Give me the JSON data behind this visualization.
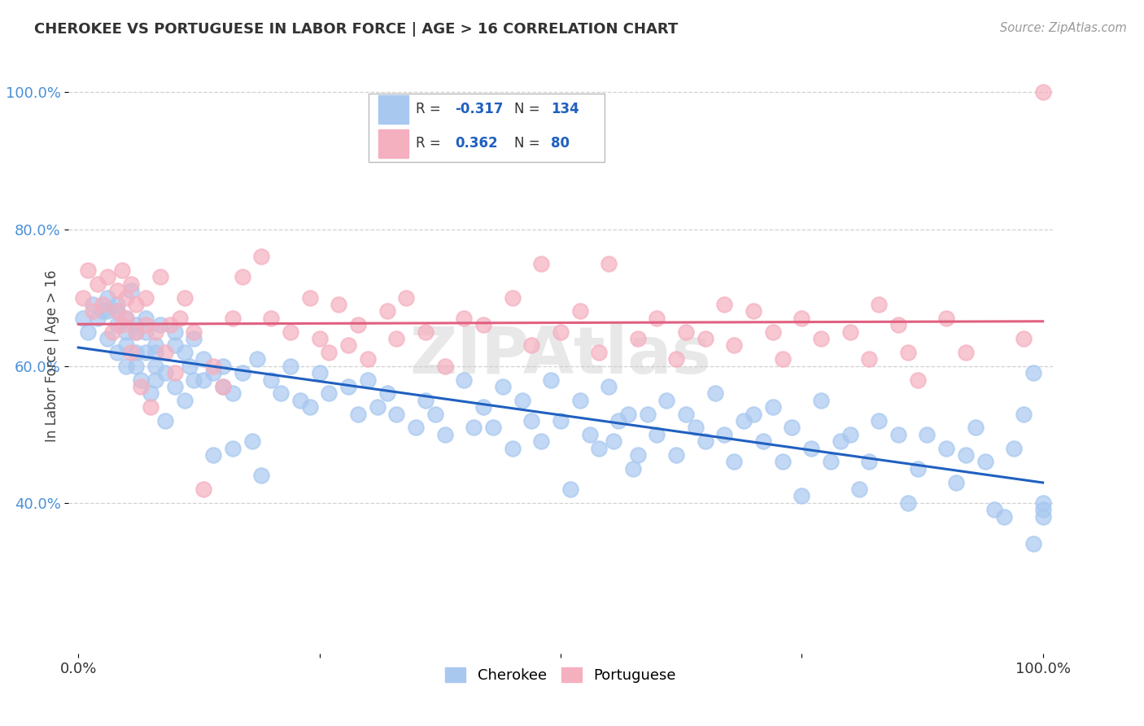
{
  "title": "CHEROKEE VS PORTUGUESE IN LABOR FORCE | AGE > 16 CORRELATION CHART",
  "source": "Source: ZipAtlas.com",
  "ylabel": "In Labor Force | Age > 16",
  "xlim": [
    -0.01,
    1.01
  ],
  "ylim": [
    0.18,
    1.05
  ],
  "cherokee_color": "#a8c8f0",
  "portuguese_color": "#f5b0c0",
  "cherokee_line_color": "#2060c0",
  "portuguese_line_color": "#e06080",
  "cherokee_R": -0.317,
  "cherokee_N": 134,
  "portuguese_R": 0.362,
  "portuguese_N": 80,
  "grid_color": "#cccccc",
  "background_color": "#ffffff",
  "ytick_positions": [
    0.4,
    0.6,
    0.8,
    1.0
  ],
  "ytick_labels": [
    "40.0%",
    "60.0%",
    "80.0%",
    "100.0%"
  ],
  "cherokee_x": [
    0.005,
    0.01,
    0.015,
    0.02,
    0.025,
    0.03,
    0.03,
    0.03,
    0.04,
    0.04,
    0.04,
    0.04,
    0.05,
    0.05,
    0.05,
    0.05,
    0.055,
    0.06,
    0.06,
    0.06,
    0.06,
    0.065,
    0.07,
    0.07,
    0.07,
    0.075,
    0.08,
    0.08,
    0.08,
    0.08,
    0.085,
    0.09,
    0.09,
    0.1,
    0.1,
    0.1,
    0.11,
    0.11,
    0.115,
    0.12,
    0.12,
    0.13,
    0.13,
    0.14,
    0.14,
    0.15,
    0.15,
    0.16,
    0.16,
    0.17,
    0.18,
    0.185,
    0.19,
    0.2,
    0.21,
    0.22,
    0.23,
    0.24,
    0.25,
    0.26,
    0.28,
    0.29,
    0.3,
    0.31,
    0.32,
    0.33,
    0.35,
    0.36,
    0.37,
    0.38,
    0.4,
    0.41,
    0.42,
    0.43,
    0.44,
    0.45,
    0.46,
    0.47,
    0.48,
    0.49,
    0.5,
    0.51,
    0.52,
    0.53,
    0.54,
    0.55,
    0.555,
    0.56,
    0.57,
    0.575,
    0.58,
    0.59,
    0.6,
    0.61,
    0.62,
    0.63,
    0.64,
    0.65,
    0.66,
    0.67,
    0.68,
    0.69,
    0.7,
    0.71,
    0.72,
    0.73,
    0.74,
    0.75,
    0.76,
    0.77,
    0.78,
    0.79,
    0.8,
    0.81,
    0.82,
    0.83,
    0.85,
    0.86,
    0.87,
    0.88,
    0.9,
    0.91,
    0.92,
    0.93,
    0.94,
    0.95,
    0.96,
    0.97,
    0.98,
    0.99,
    0.99,
    1.0,
    1.0,
    1.0
  ],
  "cherokee_y": [
    0.67,
    0.65,
    0.69,
    0.67,
    0.68,
    0.68,
    0.64,
    0.7,
    0.66,
    0.69,
    0.62,
    0.68,
    0.65,
    0.67,
    0.63,
    0.6,
    0.71,
    0.65,
    0.62,
    0.66,
    0.6,
    0.58,
    0.67,
    0.62,
    0.65,
    0.56,
    0.62,
    0.58,
    0.63,
    0.6,
    0.66,
    0.59,
    0.52,
    0.65,
    0.57,
    0.63,
    0.62,
    0.55,
    0.6,
    0.64,
    0.58,
    0.58,
    0.61,
    0.59,
    0.47,
    0.57,
    0.6,
    0.56,
    0.48,
    0.59,
    0.49,
    0.61,
    0.44,
    0.58,
    0.56,
    0.6,
    0.55,
    0.54,
    0.59,
    0.56,
    0.57,
    0.53,
    0.58,
    0.54,
    0.56,
    0.53,
    0.51,
    0.55,
    0.53,
    0.5,
    0.58,
    0.51,
    0.54,
    0.51,
    0.57,
    0.48,
    0.55,
    0.52,
    0.49,
    0.58,
    0.52,
    0.42,
    0.55,
    0.5,
    0.48,
    0.57,
    0.49,
    0.52,
    0.53,
    0.45,
    0.47,
    0.53,
    0.5,
    0.55,
    0.47,
    0.53,
    0.51,
    0.49,
    0.56,
    0.5,
    0.46,
    0.52,
    0.53,
    0.49,
    0.54,
    0.46,
    0.51,
    0.41,
    0.48,
    0.55,
    0.46,
    0.49,
    0.5,
    0.42,
    0.46,
    0.52,
    0.5,
    0.4,
    0.45,
    0.5,
    0.48,
    0.43,
    0.47,
    0.51,
    0.46,
    0.39,
    0.38,
    0.48,
    0.53,
    0.59,
    0.34,
    0.38,
    0.4,
    0.39
  ],
  "portuguese_x": [
    0.005,
    0.01,
    0.015,
    0.02,
    0.025,
    0.03,
    0.035,
    0.04,
    0.04,
    0.045,
    0.045,
    0.05,
    0.05,
    0.055,
    0.055,
    0.06,
    0.06,
    0.065,
    0.07,
    0.07,
    0.075,
    0.08,
    0.085,
    0.09,
    0.095,
    0.1,
    0.105,
    0.11,
    0.12,
    0.13,
    0.14,
    0.15,
    0.16,
    0.17,
    0.19,
    0.2,
    0.22,
    0.24,
    0.25,
    0.26,
    0.27,
    0.28,
    0.29,
    0.3,
    0.32,
    0.33,
    0.34,
    0.36,
    0.38,
    0.4,
    0.42,
    0.45,
    0.47,
    0.48,
    0.5,
    0.52,
    0.54,
    0.55,
    0.58,
    0.6,
    0.62,
    0.63,
    0.65,
    0.67,
    0.68,
    0.7,
    0.72,
    0.73,
    0.75,
    0.77,
    0.8,
    0.82,
    0.83,
    0.85,
    0.86,
    0.87,
    0.9,
    0.92,
    0.98,
    1.0
  ],
  "portuguese_y": [
    0.7,
    0.74,
    0.68,
    0.72,
    0.69,
    0.73,
    0.65,
    0.68,
    0.71,
    0.66,
    0.74,
    0.67,
    0.7,
    0.62,
    0.72,
    0.65,
    0.69,
    0.57,
    0.66,
    0.7,
    0.54,
    0.65,
    0.73,
    0.62,
    0.66,
    0.59,
    0.67,
    0.7,
    0.65,
    0.42,
    0.6,
    0.57,
    0.67,
    0.73,
    0.76,
    0.67,
    0.65,
    0.7,
    0.64,
    0.62,
    0.69,
    0.63,
    0.66,
    0.61,
    0.68,
    0.64,
    0.7,
    0.65,
    0.6,
    0.67,
    0.66,
    0.7,
    0.63,
    0.75,
    0.65,
    0.68,
    0.62,
    0.75,
    0.64,
    0.67,
    0.61,
    0.65,
    0.64,
    0.69,
    0.63,
    0.68,
    0.65,
    0.61,
    0.67,
    0.64,
    0.65,
    0.61,
    0.69,
    0.66,
    0.62,
    0.58,
    0.67,
    0.62,
    0.64,
    1.0
  ]
}
